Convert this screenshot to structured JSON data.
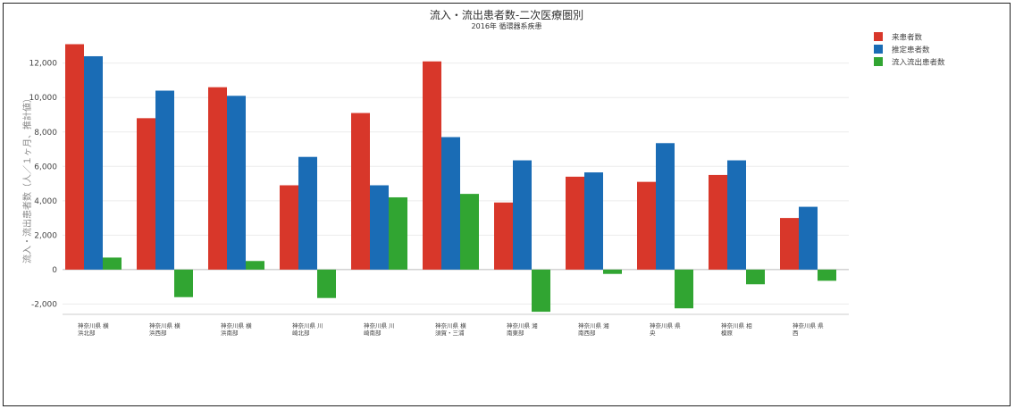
{
  "chart_data": {
    "type": "bar",
    "title": "流入・流出患者数-二次医療圏別",
    "subtitle": "2016年 循環器系疾患",
    "ylabel": "流入・流出患者数（人／１ヶ月、推計値）",
    "xlabel": "",
    "ylim": [
      -2600,
      13800
    ],
    "yticks": [
      -2000,
      0,
      2000,
      4000,
      6000,
      8000,
      10000,
      12000
    ],
    "ytick_labels": [
      "-2,000",
      "0",
      "2,000",
      "4,000",
      "6,000",
      "8,000",
      "10,000",
      "12,000"
    ],
    "grid": true,
    "legend_position": "right",
    "categories": [
      [
        "神奈川県 横",
        "浜北部"
      ],
      [
        "神奈川県 横",
        "浜西部"
      ],
      [
        "神奈川県 横",
        "浜南部"
      ],
      [
        "神奈川県 川",
        "崎北部"
      ],
      [
        "神奈川県 川",
        "崎南部"
      ],
      [
        "神奈川県 横",
        "須賀・三浦"
      ],
      [
        "神奈川県 湘",
        "南東部"
      ],
      [
        "神奈川県 湘",
        "南西部"
      ],
      [
        "神奈川県 県",
        "央"
      ],
      [
        "神奈川県 相",
        "模原"
      ],
      [
        "神奈川県 県",
        "西"
      ]
    ],
    "series": [
      {
        "name": "来患者数",
        "color": "#d8372a",
        "values": [
          13100,
          8800,
          10600,
          4900,
          9100,
          12100,
          3900,
          5400,
          5100,
          5500,
          3000
        ]
      },
      {
        "name": "推定患者数",
        "color": "#1a6cb5",
        "values": [
          12400,
          10400,
          10100,
          6550,
          4900,
          7700,
          6350,
          5650,
          7350,
          6350,
          3650
        ]
      },
      {
        "name": "流入流出患者数",
        "color": "#31a532",
        "values": [
          700,
          -1600,
          500,
          -1650,
          4200,
          4400,
          -2450,
          -250,
          -2250,
          -850,
          -650
        ]
      }
    ]
  }
}
